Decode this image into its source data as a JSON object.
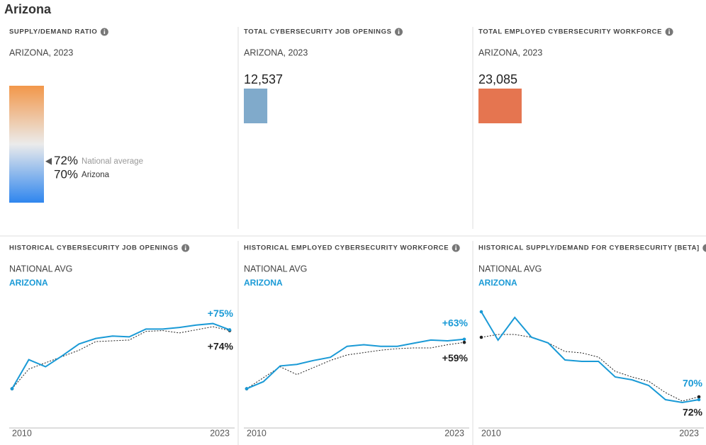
{
  "title": "Arizona",
  "chart_data": [
    {
      "type": "gauge",
      "title": "SUPPLY/DEMAND RATIO",
      "subtitle": "ARIZONA, 2023",
      "categories": [
        "National average",
        "Arizona"
      ],
      "values": [
        72,
        70
      ],
      "value_labels": [
        "72%",
        "70%"
      ],
      "ylim": [
        66,
        83
      ],
      "colors": [
        "#f2974a",
        "#ebebeb",
        "#2f86ee"
      ]
    },
    {
      "type": "bar",
      "title": "TOTAL CYBERSECURITY JOB OPENINGS",
      "subtitle": "ARIZONA, 2023",
      "values": [
        12537
      ],
      "value_labels": [
        "12,537"
      ],
      "color": "#80aacb",
      "xlim": [
        0,
        100000
      ]
    },
    {
      "type": "bar",
      "title": "TOTAL EMPLOYED CYBERSECURITY WORKFORCE",
      "subtitle": "ARIZONA, 2023",
      "values": [
        23085
      ],
      "value_labels": [
        "23,085"
      ],
      "color": "#e57550",
      "xlim": [
        0,
        100000
      ]
    },
    {
      "type": "line",
      "title": "HISTORICAL CYBERSECURITY JOB OPENINGS",
      "x": [
        2010,
        2011,
        2012,
        2013,
        2014,
        2015,
        2016,
        2017,
        2018,
        2019,
        2020,
        2021,
        2022,
        2023
      ],
      "xlim": [
        2010,
        2023
      ],
      "xticks": [
        2010,
        2023
      ],
      "ylim": [
        -50,
        116
      ],
      "series": [
        {
          "name": "NATIONAL AVG",
          "color": "#222222",
          "values": [
            0,
            25,
            33,
            41,
            49,
            60,
            61,
            62,
            73,
            74,
            71,
            75,
            79,
            74
          ],
          "value_labels": [
            null,
            null,
            null,
            null,
            null,
            null,
            null,
            null,
            null,
            null,
            null,
            null,
            null,
            "+74%"
          ]
        },
        {
          "name": "ARIZONA",
          "color": "#1a9ad6",
          "values": [
            0,
            37,
            28,
            42,
            57,
            64,
            67,
            66,
            76,
            76,
            78,
            81,
            83,
            75
          ],
          "value_labels": [
            null,
            null,
            null,
            null,
            null,
            null,
            null,
            null,
            null,
            null,
            null,
            null,
            null,
            "+75%"
          ]
        }
      ]
    },
    {
      "type": "line",
      "title": "HISTORICAL EMPLOYED CYBERSECURITY WORKFORCE",
      "x": [
        2010,
        2011,
        2012,
        2013,
        2014,
        2015,
        2016,
        2017,
        2018,
        2019,
        2020,
        2021,
        2022,
        2023
      ],
      "xlim": [
        2010,
        2023
      ],
      "xticks": [
        2010,
        2023
      ],
      "ylim": [
        -50,
        116
      ],
      "series": [
        {
          "name": "NATIONAL AVG",
          "color": "#222222",
          "values": [
            0,
            14,
            28,
            18,
            27,
            36,
            43,
            46,
            49,
            51,
            52,
            52,
            56,
            59
          ],
          "value_labels": [
            null,
            null,
            null,
            null,
            null,
            null,
            null,
            null,
            null,
            null,
            null,
            null,
            null,
            "+59%"
          ]
        },
        {
          "name": "ARIZONA",
          "color": "#1a9ad6",
          "values": [
            0,
            9,
            29,
            31,
            36,
            40,
            54,
            56,
            54,
            54,
            58,
            62,
            61,
            63
          ],
          "value_labels": [
            null,
            null,
            null,
            null,
            null,
            null,
            null,
            null,
            null,
            null,
            null,
            null,
            null,
            "+63%"
          ]
        }
      ]
    },
    {
      "type": "line",
      "title": "HISTORICAL SUPPLY/DEMAND FOR CYBERSECURITY [BETA]",
      "x": [
        2010,
        2011,
        2012,
        2013,
        2014,
        2015,
        2016,
        2017,
        2018,
        2019,
        2020,
        2021,
        2022,
        2023
      ],
      "xlim": [
        2010,
        2023
      ],
      "xticks": [
        2010,
        2023
      ],
      "ylim": [
        50,
        142
      ],
      "series": [
        {
          "name": "NATIONAL AVG",
          "color": "#222222",
          "values": [
            114,
            116,
            116,
            114,
            110,
            104,
            103,
            100,
            90,
            86,
            83,
            75,
            69,
            72
          ],
          "value_labels": [
            null,
            null,
            null,
            null,
            null,
            null,
            null,
            null,
            null,
            null,
            null,
            null,
            null,
            "72%"
          ]
        },
        {
          "name": "ARIZONA",
          "color": "#1a9ad6",
          "values": [
            132,
            112,
            128,
            114,
            110,
            98,
            97,
            97,
            86,
            84,
            80,
            70,
            68,
            70
          ],
          "value_labels": [
            null,
            null,
            null,
            null,
            null,
            null,
            null,
            null,
            null,
            null,
            null,
            null,
            null,
            "70%"
          ]
        }
      ]
    }
  ]
}
